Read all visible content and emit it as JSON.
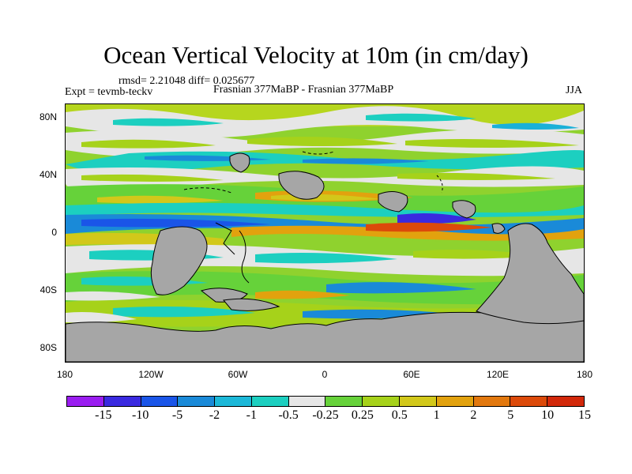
{
  "title": "Ocean Vertical Velocity at 10m (in cm/day)",
  "stats": "rmsd= 2.21048 diff= 0.025677",
  "experiment": "Expt = tevmb-teckv",
  "comparison": "Frasnian 377MaBP - Frasnian 377MaBP",
  "season": "JJA",
  "map": {
    "land_color": "#a6a6a6",
    "lat_labels": [
      "80N",
      "40N",
      "0",
      "40S",
      "80S"
    ],
    "lon_labels": [
      "180",
      "120W",
      "60W",
      "0",
      "60E",
      "120E",
      "180"
    ]
  },
  "colorbar": {
    "colors": [
      "#9a1df0",
      "#3a2ae0",
      "#1a55e8",
      "#1a8ad8",
      "#1cb8d8",
      "#1ccfc0",
      "#e6e6e6",
      "#66d23a",
      "#a6d21a",
      "#d2c81a",
      "#e2a20e",
      "#e2780e",
      "#dc4a0a",
      "#d2280a"
    ],
    "labels": [
      "-15",
      "-10",
      "-5",
      "-2",
      "-1",
      "-0.5",
      "-0.25",
      "0.25",
      "0.5",
      "1",
      "2",
      "5",
      "10",
      "15"
    ]
  }
}
